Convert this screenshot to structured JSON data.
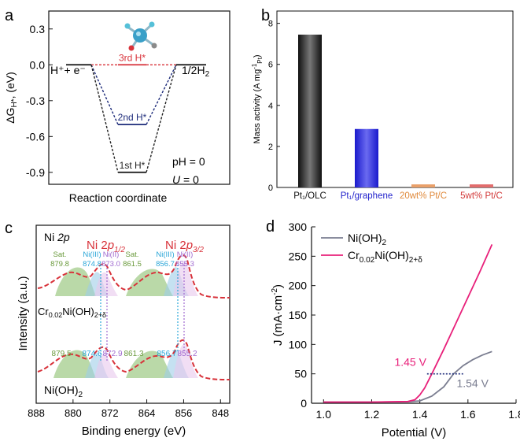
{
  "panel_labels": [
    "a",
    "b",
    "c",
    "d"
  ],
  "colors": {
    "red": "#d8323a",
    "navy": "#1d2b7a",
    "dark": "#222222",
    "green": "#8cbf6e",
    "blue_fill": "#9fcde8",
    "pink": "#e8207a",
    "gray_line": "#7a7d90",
    "mauve": "#b07ab8",
    "orange": "#e9a06a",
    "ni_blue": "#2aa6d8",
    "ni_violet": "#a06ad0"
  },
  "chart_data": [
    {
      "id": "a",
      "type": "line",
      "title": "",
      "xlabel": "Reaction coordinate",
      "ylabel": "ΔG",
      "ylabel_sub": "H*",
      "ylabel_unit": "(eV)",
      "ylim": [
        -1.0,
        0.45
      ],
      "yticks": [
        "0.3",
        "0.0",
        "-0.3",
        "-0.6",
        "-0.9"
      ],
      "ytick_values": [
        0.3,
        0.0,
        -0.3,
        -0.6,
        -0.9
      ],
      "levels": [
        {
          "name": "3rd H*",
          "value": 0.0,
          "color": "#d8323a"
        },
        {
          "name": "2nd H*",
          "value": -0.5,
          "color": "#1d2b7a"
        },
        {
          "name": "1st H*",
          "value": -0.9,
          "color": "#222222"
        }
      ],
      "annotations": {
        "left": "H⁺+ e⁻",
        "right_prefix": "1/2H",
        "right_sub": "2",
        "ph": "pH = 0",
        "u_var": "U",
        "u_rest": " = 0"
      }
    },
    {
      "id": "b",
      "type": "bar",
      "title": "",
      "ylabel": "Mass activity (A mg",
      "ylabel_sup": "-1",
      "ylabel_sub": "Pt",
      "ylabel_close": ")",
      "ylim": [
        0,
        8.6
      ],
      "yticks": [
        "0",
        "2",
        "4",
        "6",
        "8"
      ],
      "ytick_values": [
        0,
        2,
        4,
        6,
        8
      ],
      "categories": [
        "Pt₁/OLC",
        "Pt₁/graphene",
        "20wt% Pt/C",
        "5wt% Pt/C"
      ],
      "values": [
        7.45,
        2.85,
        0.15,
        0.15
      ],
      "bar_colors": [
        "#333333",
        "#2a2ad0",
        "#e9a06a",
        "#e26d6d"
      ],
      "label_colors": [
        "#111111",
        "#2222cc",
        "#e08a3c",
        "#d23a3a"
      ]
    },
    {
      "id": "c",
      "type": "line",
      "title": "",
      "xlabel": "Binding energy (eV)",
      "ylabel": "Intensity (a.u.)",
      "xlim": [
        888,
        846
      ],
      "xticks": [
        "888",
        "880",
        "872",
        "864",
        "856",
        "848"
      ],
      "xtick_values": [
        888,
        880,
        872,
        864,
        856,
        848
      ],
      "header": {
        "ni2p_a": "Ni ",
        "ni2p_b": "2p",
        "ni2p12_a": "Ni 2",
        "ni2p12_b": "p",
        "ni2p12_sub": "1/2",
        "ni2p32_a": "Ni 2",
        "ni2p32_b": "p",
        "ni2p32_sub": "3/2"
      },
      "upper_sample": {
        "label_a": "Cr",
        "label_sub1": "0.02",
        "label_b": "Ni(OH)",
        "label_sub2": "2+δ"
      },
      "lower_sample": {
        "label_a": "Ni(OH)",
        "label_sub": "2"
      },
      "upper_peaks": [
        {
          "name": "Sat.",
          "value": "879.8",
          "color": "#6a9a3c"
        },
        {
          "name": "Ni(III)",
          "value": "874.8",
          "color": "#2aa6d8"
        },
        {
          "name": "Ni(II)",
          "value": "873.0",
          "color": "#a06ad0"
        },
        {
          "name": "Sat.",
          "value": "861.5",
          "color": "#6a9a3c"
        },
        {
          "name": "Ni(III)",
          "value": "856.7",
          "color": "#2aa6d8"
        },
        {
          "name": "Ni(II)",
          "value": "855.3",
          "color": "#a06ad0"
        }
      ],
      "lower_peaks": [
        {
          "value": "879.5",
          "color": "#6a9a3c"
        },
        {
          "value": "874.6",
          "color": "#2aa6d8"
        },
        {
          "value": "872.9",
          "color": "#a06ad0"
        },
        {
          "value": "861.3",
          "color": "#6a9a3c"
        },
        {
          "value": "856.7",
          "color": "#2aa6d8"
        },
        {
          "value": "855.2",
          "color": "#a06ad0"
        }
      ]
    },
    {
      "id": "d",
      "type": "line",
      "title": "",
      "xlabel": "Potential (V)",
      "ylabel": "J (mA·cm",
      "ylabel_sup": "-2",
      "ylabel_close": ")",
      "xlim": [
        0.95,
        1.8
      ],
      "ylim": [
        0,
        300
      ],
      "xticks": [
        "1.0",
        "1.2",
        "1.4",
        "1.6",
        "1.8"
      ],
      "xtick_values": [
        1.0,
        1.2,
        1.4,
        1.6,
        1.8
      ],
      "yticks": [
        "0",
        "50",
        "100",
        "150",
        "200",
        "250",
        "300"
      ],
      "ytick_values": [
        0,
        50,
        100,
        150,
        200,
        250,
        300
      ],
      "series": [
        {
          "name": "Ni(OH)",
          "name_sub": "2",
          "color": "#7a7d90",
          "x": [
            1.0,
            1.2,
            1.35,
            1.4,
            1.45,
            1.5,
            1.54,
            1.58,
            1.62,
            1.66,
            1.7
          ],
          "y": [
            2,
            2,
            2.5,
            4,
            12,
            28,
            50,
            64,
            74,
            82,
            88
          ]
        },
        {
          "name_a": "Cr",
          "name_sub1": "0.02",
          "name_b": "Ni(OH)",
          "name_sub2": "2+δ",
          "color": "#e8207a",
          "x": [
            1.0,
            1.2,
            1.35,
            1.38,
            1.4,
            1.42,
            1.45,
            1.5,
            1.55,
            1.6,
            1.65,
            1.7
          ],
          "y": [
            2,
            2,
            3,
            6,
            14,
            26,
            50,
            92,
            136,
            180,
            224,
            270
          ]
        }
      ],
      "annotations": [
        {
          "text": "1.45 V",
          "x": 1.45,
          "y": 50,
          "color": "#e8207a"
        },
        {
          "text": "1.54 V",
          "x": 1.54,
          "y": 50,
          "color": "#7a7d90"
        }
      ],
      "reference_line": {
        "y": 50,
        "x_from": 1.43,
        "x_to": 1.58
      }
    }
  ]
}
